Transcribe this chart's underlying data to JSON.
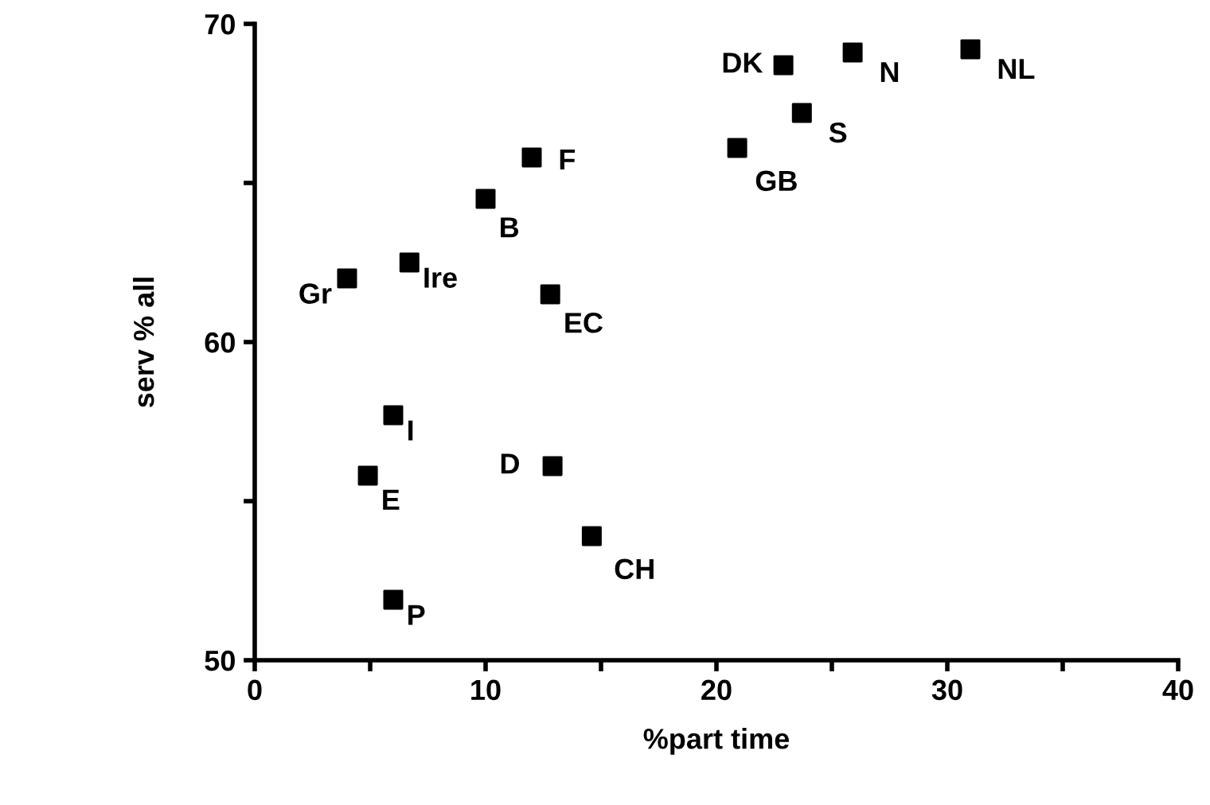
{
  "chart_data": {
    "type": "scatter",
    "xlabel": "%part time",
    "ylabel": "serv % all",
    "x": [
      4.0,
      6.7,
      10.0,
      12.0,
      12.8,
      6.0,
      4.9,
      6.0,
      12.9,
      14.6,
      22.9,
      25.9,
      31.0,
      23.7,
      20.9
    ],
    "series": [
      {
        "color": "#000000",
        "values": [
          62.0,
          62.5,
          64.5,
          65.8,
          61.5,
          57.7,
          55.8,
          51.9,
          56.1,
          53.9,
          68.7,
          69.1,
          69.2,
          67.2,
          66.1
        ]
      }
    ],
    "marker": "square",
    "annotations": [
      {
        "text": "Gr",
        "x": 4.0,
        "y": 62.0
      },
      {
        "text": "Ire",
        "x": 6.7,
        "y": 62.5
      },
      {
        "text": "B",
        "x": 10.0,
        "y": 64.5
      },
      {
        "text": "F",
        "x": 12.0,
        "y": 65.8
      },
      {
        "text": "EC",
        "x": 12.8,
        "y": 61.5
      },
      {
        "text": "I",
        "x": 6.0,
        "y": 57.7
      },
      {
        "text": "E",
        "x": 4.9,
        "y": 55.8
      },
      {
        "text": "P",
        "x": 6.0,
        "y": 51.9
      },
      {
        "text": "D",
        "x": 12.9,
        "y": 56.1
      },
      {
        "text": "CH",
        "x": 14.6,
        "y": 53.9
      },
      {
        "text": "DK",
        "x": 22.9,
        "y": 68.7
      },
      {
        "text": "N",
        "x": 25.9,
        "y": 69.1
      },
      {
        "text": "NL",
        "x": 31.0,
        "y": 69.2
      },
      {
        "text": "S",
        "x": 23.7,
        "y": 67.2
      },
      {
        "text": "GB",
        "x": 20.9,
        "y": 66.1
      }
    ],
    "xlim": [
      0,
      40
    ],
    "ylim": [
      50,
      70
    ],
    "xticks": [
      0,
      {
        "value": 5,
        "label": null
      },
      10,
      {
        "value": 15,
        "label": null
      },
      20,
      {
        "value": 25,
        "label": null
      },
      30,
      {
        "value": 35,
        "label": null
      },
      40
    ],
    "yticks": [
      50,
      {
        "value": 55,
        "label": null
      },
      60,
      {
        "value": 65,
        "label": null
      },
      70
    ],
    "grid": false,
    "legend": false
  }
}
